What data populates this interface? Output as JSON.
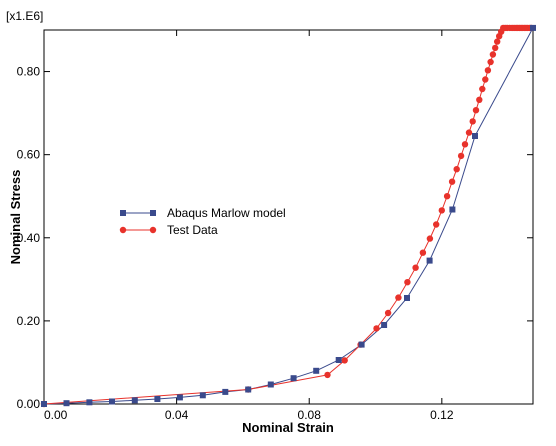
{
  "chart_data": {
    "type": "scatter",
    "scale_factor_label": "[x1.E6]",
    "xlabel": "Nominal Strain",
    "ylabel": "Nominal Stress",
    "xlim": [
      0.0,
      0.1475
    ],
    "ylim": [
      0.0,
      0.9
    ],
    "x_ticks": [
      0.0,
      0.04,
      0.08,
      0.12
    ],
    "x_tick_labels": [
      "0.00",
      "0.04",
      "0.08",
      "0.12"
    ],
    "y_ticks": [
      0.0,
      0.2,
      0.4,
      0.6,
      0.8
    ],
    "y_tick_labels": [
      "0.00",
      "0.20",
      "0.40",
      "0.60",
      "0.80"
    ],
    "legend_placement": "center-left",
    "grid": false,
    "series": [
      {
        "name": "Abaqus Marlow model",
        "color": "#3a4a8c",
        "marker": "square",
        "x": [
          0.0,
          0.0068,
          0.0137,
          0.0205,
          0.0274,
          0.0342,
          0.041,
          0.0479,
          0.0547,
          0.0616,
          0.0684,
          0.0753,
          0.0821,
          0.0889,
          0.0958,
          0.1026,
          0.1095,
          0.1163,
          0.1232,
          0.13,
          0.1475
        ],
        "y": [
          0.0,
          0.002,
          0.004,
          0.006,
          0.009,
          0.012,
          0.016,
          0.021,
          0.029,
          0.035,
          0.047,
          0.062,
          0.08,
          0.106,
          0.143,
          0.19,
          0.255,
          0.345,
          0.468,
          0.645,
          0.905
        ]
      },
      {
        "name": "Test Data",
        "color": "#e8322b",
        "marker": "circle",
        "x": [
          0.0,
          0.0616,
          0.0855,
          0.0907,
          0.0955,
          0.1003,
          0.1038,
          0.1069,
          0.1096,
          0.1121,
          0.1143,
          0.1164,
          0.1183,
          0.12,
          0.1216,
          0.1231,
          0.1245,
          0.1258,
          0.127,
          0.1282,
          0.1293,
          0.1303,
          0.1313,
          0.1322,
          0.1331,
          0.1339,
          0.1347,
          0.1354,
          0.1361,
          0.1367,
          0.1373,
          0.1379,
          0.1385,
          0.1391,
          0.1397,
          0.1405,
          0.1412,
          0.1418,
          0.1424,
          0.1429,
          0.1434,
          0.1439,
          0.1444,
          0.1449,
          0.1454,
          0.1459,
          0.1465,
          0.147
        ],
        "y": [
          0.0,
          0.035,
          0.07,
          0.105,
          0.143,
          0.182,
          0.219,
          0.256,
          0.293,
          0.328,
          0.364,
          0.398,
          0.432,
          0.466,
          0.5,
          0.535,
          0.565,
          0.597,
          0.625,
          0.653,
          0.68,
          0.707,
          0.732,
          0.758,
          0.781,
          0.803,
          0.823,
          0.841,
          0.857,
          0.872,
          0.885,
          0.896,
          0.905,
          0.905,
          0.905,
          0.905,
          0.905,
          0.905,
          0.905,
          0.905,
          0.905,
          0.905,
          0.905,
          0.905,
          0.905,
          0.905,
          0.905,
          0.905
        ]
      }
    ]
  }
}
